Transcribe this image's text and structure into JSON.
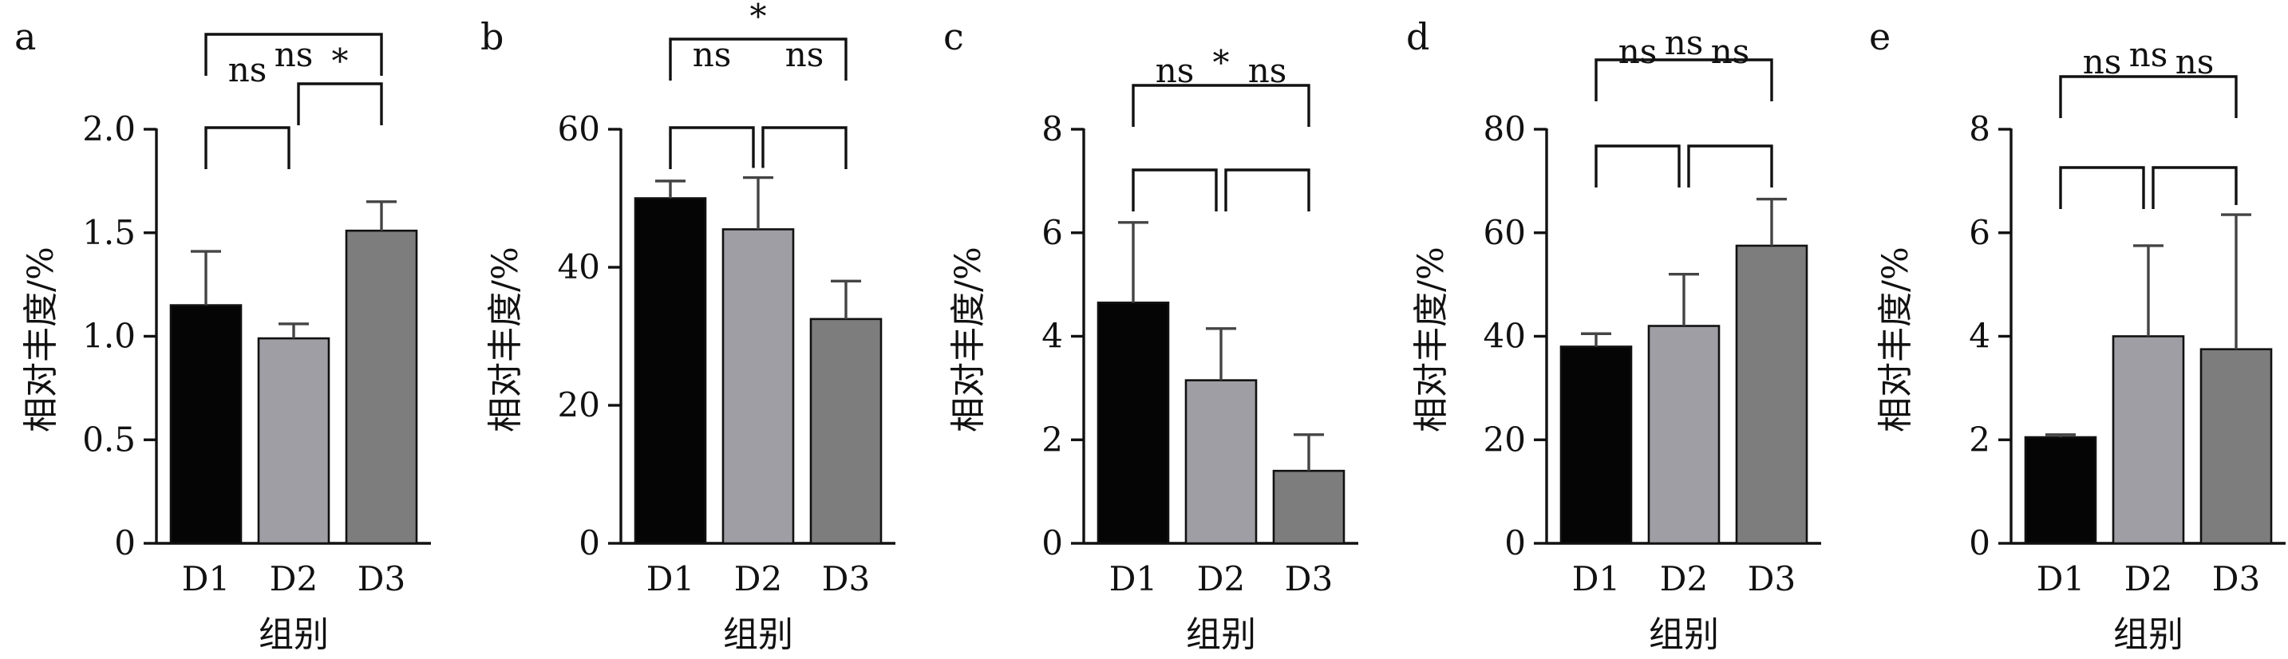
{
  "chart_data": [
    {
      "type": "bar",
      "panel": "a",
      "categories": [
        "D1",
        "D2",
        "D3"
      ],
      "values": [
        1.15,
        0.99,
        1.51
      ],
      "errors": [
        0.26,
        0.07,
        0.14
      ],
      "ylim": [
        0,
        2.0
      ],
      "yticks": [
        "0",
        "0.5",
        "1.0",
        "1.5",
        "2.0"
      ],
      "ytick_values": [
        0,
        0.5,
        1.0,
        1.5,
        2.0
      ],
      "ylabel": "相对丰度/%",
      "xlabel": "组别",
      "significance": [
        {
          "from": 0,
          "to": 1,
          "label": "ns"
        },
        {
          "from": 1,
          "to": 2,
          "label": "*"
        },
        {
          "from": 0,
          "to": 2,
          "label": "ns"
        }
      ]
    },
    {
      "type": "bar",
      "panel": "b",
      "categories": [
        "D1",
        "D2",
        "D3"
      ],
      "values": [
        50,
        45.5,
        32.5
      ],
      "errors": [
        2.5,
        7.5,
        5.5
      ],
      "ylim": [
        0,
        60
      ],
      "yticks": [
        "0",
        "20",
        "40",
        "60"
      ],
      "ytick_values": [
        0,
        20,
        40,
        60
      ],
      "ylabel": "相对丰度/%",
      "xlabel": "组别",
      "significance": [
        {
          "from": 0,
          "to": 1,
          "label": "ns"
        },
        {
          "from": 1,
          "to": 2,
          "label": "ns"
        },
        {
          "from": 0,
          "to": 2,
          "label": "*"
        }
      ]
    },
    {
      "type": "bar",
      "panel": "c",
      "categories": [
        "D1",
        "D2",
        "D3"
      ],
      "values": [
        4.65,
        3.15,
        1.4
      ],
      "errors": [
        1.55,
        1.0,
        0.7
      ],
      "ylim": [
        0,
        8
      ],
      "yticks": [
        "0",
        "2",
        "4",
        "6",
        "8"
      ],
      "ytick_values": [
        0,
        2,
        4,
        6,
        8
      ],
      "ylabel": "相对丰度/%",
      "xlabel": "组别",
      "significance": [
        {
          "from": 0,
          "to": 1,
          "label": "ns"
        },
        {
          "from": 1,
          "to": 2,
          "label": "ns"
        },
        {
          "from": 0,
          "to": 2,
          "label": "*"
        }
      ]
    },
    {
      "type": "bar",
      "panel": "d",
      "categories": [
        "D1",
        "D2",
        "D3"
      ],
      "values": [
        38,
        42,
        57.5
      ],
      "errors": [
        2.5,
        10,
        9
      ],
      "ylim": [
        0,
        80
      ],
      "yticks": [
        "0",
        "20",
        "40",
        "60",
        "80"
      ],
      "ytick_values": [
        0,
        20,
        40,
        60,
        80
      ],
      "ylabel": "相对丰度/%",
      "xlabel": "组别",
      "significance": [
        {
          "from": 0,
          "to": 1,
          "label": "ns"
        },
        {
          "from": 1,
          "to": 2,
          "label": "ns"
        },
        {
          "from": 0,
          "to": 2,
          "label": "ns"
        }
      ]
    },
    {
      "type": "bar",
      "panel": "e",
      "categories": [
        "D1",
        "D2",
        "D3"
      ],
      "values": [
        2.05,
        4.0,
        3.75
      ],
      "errors": [
        0.05,
        1.75,
        2.6
      ],
      "ylim": [
        0,
        8
      ],
      "yticks": [
        "0",
        "2",
        "4",
        "6",
        "8"
      ],
      "ytick_values": [
        0,
        2,
        4,
        6,
        8
      ],
      "ylabel": "相对丰度/%",
      "xlabel": "组别",
      "significance": [
        {
          "from": 0,
          "to": 1,
          "label": "ns"
        },
        {
          "from": 1,
          "to": 2,
          "label": "ns"
        },
        {
          "from": 0,
          "to": 2,
          "label": "ns"
        }
      ]
    }
  ],
  "colors": {
    "bar_fills": [
      "#050505",
      "#9e9ea4",
      "#7d7d7d"
    ],
    "error_bar": "#444444",
    "axis": "#111111"
  }
}
